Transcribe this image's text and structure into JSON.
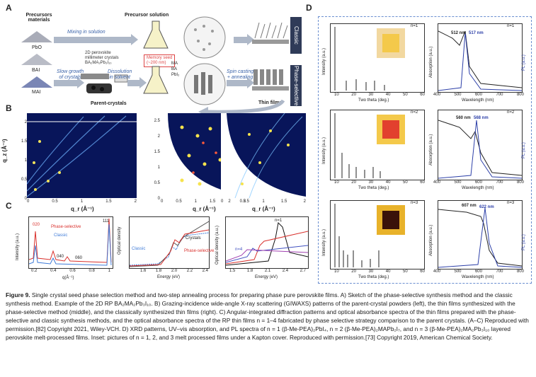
{
  "panels": {
    "a": {
      "label": "A",
      "precursors_title_line1": "Precursors",
      "precursors_title_line2": "materials",
      "precursors": [
        "PbO",
        "BAI",
        "MAI"
      ],
      "solution_title": "Precursor solution",
      "mixing": "Mixing in solution",
      "slow_growth_line1": "Slow growth",
      "slow_growth_line2": "of crystals",
      "crystal_note_line1": "2D perovskite",
      "crystal_note_line2": "millimeter crystals",
      "crystal_note_line3": "BA₂MA₂Pb₃I₁₀",
      "memory_seed_line1": "Memory seed",
      "memory_seed_line2": "(~200 nm)",
      "dissolution_line1": "Dissolution",
      "dissolution_line2": "in solvent",
      "legend": [
        "MA",
        "BA",
        "PbI₂"
      ],
      "spin_line1": "Spin casting",
      "spin_line2": "+ annealing",
      "parent_crystals": "Parent-crystals",
      "thin_films": "Thin films",
      "classic": "Classic",
      "phase_selective": "Phase-selective"
    },
    "b": {
      "label": "B",
      "y_axis": "q_z (Å⁻¹)",
      "x_axis": "q_r (Å⁻¹)",
      "p1_xticks": [
        "0",
        "0.5",
        "1",
        "1.5",
        "2"
      ],
      "p1_yticks": [
        "2",
        "1.5",
        "1",
        "0.5",
        "0"
      ],
      "p2_xticks": [
        "0",
        "0.5",
        "1",
        "1.5",
        "2",
        "2.5"
      ],
      "p2_yticks": [
        "2.5",
        "2",
        "1.5",
        "1",
        "0.5",
        "0"
      ],
      "p3_xticks": [
        "0",
        "0.5",
        "1",
        "1.5",
        "2"
      ],
      "p3_yticks": [
        "2",
        "1.5",
        "1",
        "0.5",
        "0"
      ]
    },
    "c": {
      "label": "C",
      "p1_ylabel": "Intensity (a.u.)",
      "p1_xlabel": "q(Å⁻¹)",
      "p1_xticks": [
        "0.2",
        "0.4",
        "0.6",
        "0.8",
        "1"
      ],
      "p1_series": [
        "Phase-selective",
        "Classic"
      ],
      "p1_peaks": [
        "020",
        "040",
        "060",
        "111"
      ],
      "p2_ylabel": "Optical density",
      "p2_xlabel": "Energy (eV)",
      "p2_xticks": [
        "1.6",
        "1.8",
        "2.0",
        "2.2",
        "2.4"
      ],
      "p2_series": [
        "Classic",
        "Crystals",
        "Phase-selective"
      ],
      "p3_ylabel": "Optical density (a.u.)",
      "p3_xlabel": "Energy (eV)",
      "p3_xticks": [
        "1.5",
        "1.8",
        "2.1",
        "2.4",
        "2.7"
      ],
      "p3_n_labels": [
        "n=1",
        "n=4"
      ]
    },
    "d": {
      "label": "D",
      "xrd_ylabel": "Intensity (a.u.)",
      "xrd_xlabel": "Two theta (deg.)",
      "xrd_xticks": [
        "10",
        "20",
        "30",
        "40",
        "50",
        "60"
      ],
      "abs_ylabel": "Absorption (a.u.)",
      "pl_ylabel": "PL (a.u.)",
      "abs_xlabel": "Wavelength (nm)",
      "abs_xticks": [
        "400",
        "500",
        "600",
        "700",
        "800"
      ],
      "rows": [
        {
          "n": "n=1",
          "abs_peak": "512 nm",
          "pl_peak": "517 nm"
        },
        {
          "n": "n=2",
          "abs_peak": "560 nm",
          "pl_peak": "568 nm"
        },
        {
          "n": "n=3",
          "abs_peak": "607 nm",
          "pl_peak": "622 nm"
        }
      ]
    }
  },
  "caption": {
    "lead": "Figure 9.",
    "text": "Single crystal seed phase selection method and two-step annealing process for preparing phase pure perovskite films. A) Sketch of the phase-selective synthesis method and the classic synthesis method. Example of the 2D RP BA₂MA₂Pb₃I₁₀. B) Grazing-incidence wide-angle X-ray scattering (GIWAXS) patterns of the parent-crystal powders (left), the thin films synthesized with the phase-selective method (middle), and the classically synthesized thin films (right). C) Angular-integrated diffraction patterns and optical absorbance spectra of the thin films prepared with the phase-selective and classic synthesis methods, and the optical absorbance spectra of the RP thin films n = 1–4 fabricated by phase selective strategy comparison to the parent crystals. (A–C) Reproduced with permission.[82] Copyright 2021, Wiley-VCH. D) XRD patterns, UV–vis absorption, and PL spectra of n = 1 (β-Me-PEA)₂PbI₄, n = 2 (β-Me-PEA)₂MAPb₂I₇, and n = 3 (β-Me-PEA)₂MA₂Pb₃I₁₀ layered perovskite melt-processed films. Inset: pictures of n = 1, 2, and 3 melt processed films under a Kapton cover. Reproduced with permission.[73] Copyright 2019, American Chemical Society."
  },
  "colors": {
    "phase_selective": "#d9302c",
    "classic": "#3f7bd8",
    "crystals": "#555555",
    "pl_blue": "#2c3fa8",
    "diffraction_bg": "#08155a",
    "tab_bg": "#2f3b58"
  }
}
